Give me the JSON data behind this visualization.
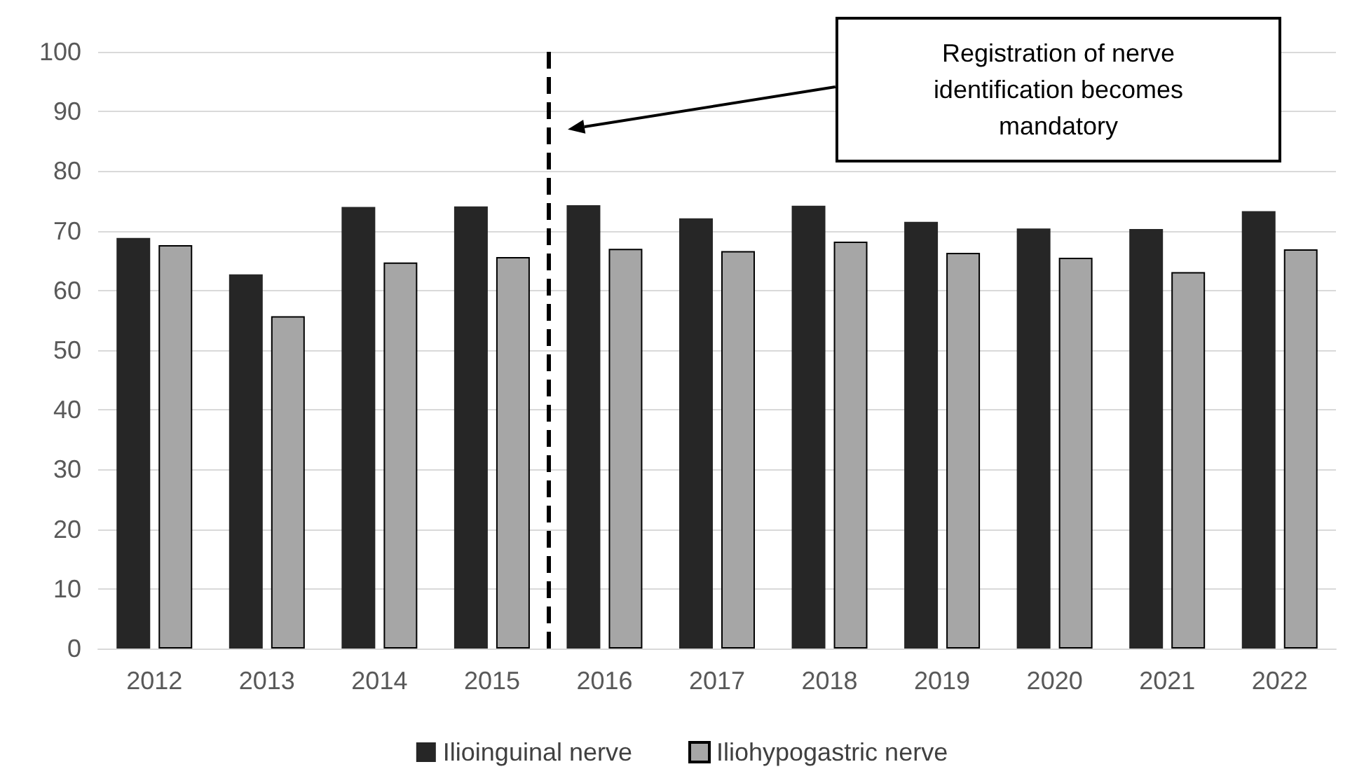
{
  "chart_data": {
    "type": "bar",
    "x": [
      2012,
      2013,
      2014,
      2015,
      2016,
      2017,
      2018,
      2019,
      2020,
      2021,
      2022
    ],
    "xlim": [
      2011.5,
      2022.5
    ],
    "xticks": [
      2012,
      2013,
      2014,
      2015,
      2016,
      2017,
      2018,
      2019,
      2020,
      2021,
      2022
    ],
    "ylim": [
      0,
      100
    ],
    "yticks": [
      0,
      10,
      20,
      30,
      40,
      50,
      60,
      70,
      80,
      90,
      100
    ],
    "series": [
      {
        "name": "Ilioinguinal nerve",
        "color": "#262626",
        "values": [
          68.8,
          62.7,
          74.0,
          74.1,
          74.3,
          72.1,
          74.2,
          71.5,
          70.4,
          70.3,
          73.3
        ]
      },
      {
        "name": "Iliohypogastric nerve",
        "color": "#a6a6a6",
        "values": [
          67.6,
          55.7,
          64.7,
          65.6,
          67.0,
          66.6,
          68.2,
          66.3,
          65.5,
          63.1,
          66.9
        ]
      }
    ],
    "ref_lines": [
      {
        "axis": "x",
        "value": 2015.5,
        "line_style": "dashed",
        "color": "#000000"
      }
    ],
    "annotations": [
      "Registration of nerve identification becomes mandatory"
    ],
    "grid": "y",
    "legend": "bottom"
  }
}
